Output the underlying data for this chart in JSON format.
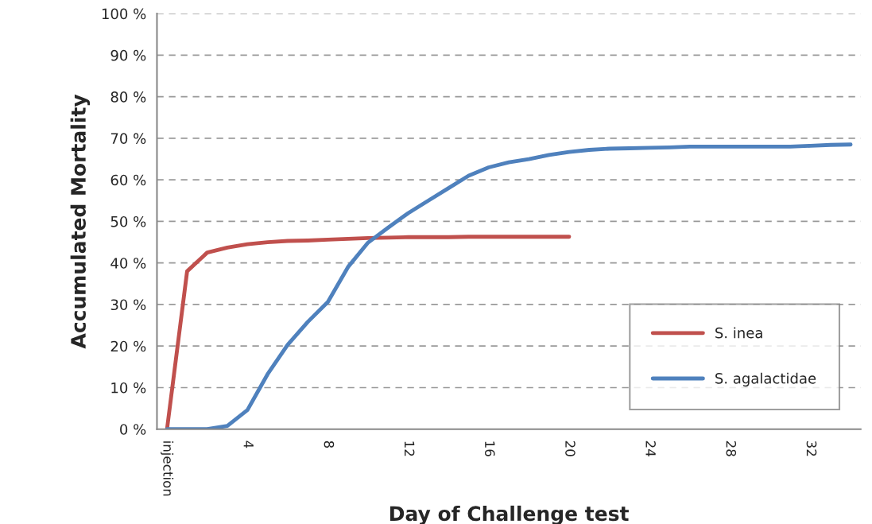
{
  "chart_data": {
    "type": "line",
    "xlabel": "Day of Challenge test",
    "ylabel": "Accumulated Mortality",
    "categories": [
      "injection",
      null,
      null,
      null,
      "4",
      null,
      null,
      null,
      "8",
      null,
      null,
      null,
      "12",
      null,
      null,
      null,
      "16",
      null,
      null,
      null,
      "20",
      null,
      null,
      null,
      "24",
      null,
      null,
      null,
      "28",
      null,
      null,
      null,
      "32",
      null,
      null
    ],
    "series": [
      {
        "name": "S. inea",
        "color": "#c0504d",
        "values": [
          0,
          38,
          42.5,
          43.7,
          44.5,
          45,
          45.3,
          45.4,
          45.6,
          45.8,
          46,
          46.1,
          46.2,
          46.2,
          46.2,
          46.3,
          46.3,
          46.3,
          46.3,
          46.3,
          46.3,
          null,
          null,
          null,
          null,
          null,
          null,
          null,
          null,
          null,
          null,
          null,
          null,
          null,
          null
        ]
      },
      {
        "name": "S. agalactidae",
        "color": "#4f81bd",
        "values": [
          0,
          0,
          0,
          0.8,
          4.6,
          13.2,
          20.3,
          25.8,
          30.6,
          39,
          44.9,
          48.5,
          52,
          55,
          58,
          61,
          63,
          64.2,
          65,
          66,
          66.7,
          67.2,
          67.5,
          67.6,
          67.7,
          67.8,
          68,
          68,
          68,
          68,
          68,
          68,
          68.2,
          68.4,
          68.5
        ]
      }
    ],
    "ylim": [
      0,
      100
    ],
    "yticks": [
      {
        "value": 0,
        "label": "0 %"
      },
      {
        "value": 10,
        "label": "10 %"
      },
      {
        "value": 20,
        "label": "20 %"
      },
      {
        "value": 30,
        "label": "30 %"
      },
      {
        "value": 40,
        "label": "40 %"
      },
      {
        "value": 50,
        "label": "50 %"
      },
      {
        "value": 60,
        "label": "60 %"
      },
      {
        "value": 70,
        "label": "70 %"
      },
      {
        "value": 80,
        "label": "80 %"
      },
      {
        "value": 90,
        "label": "90 %"
      },
      {
        "value": 100,
        "label": "100 %"
      }
    ],
    "grid": "y",
    "legend": "bottom right",
    "line_style": "solid",
    "marker": "none"
  }
}
